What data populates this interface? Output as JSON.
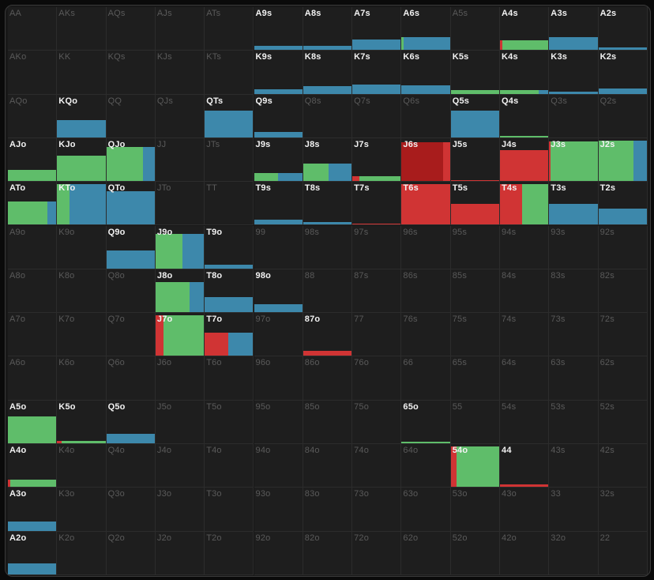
{
  "colors": {
    "red": "#d03434",
    "dark_red": "#a81c1c",
    "green": "#5fbd6a",
    "blue": "#3d88ab",
    "cell": "#1e1e1e"
  },
  "rows": [
    [
      "AA",
      "AKs",
      "AQs",
      "AJs",
      "ATs",
      "A9s",
      "A8s",
      "A7s",
      "A6s",
      "A5s",
      "A4s",
      "A3s",
      "A2s"
    ],
    [
      "AKo",
      "KK",
      "KQs",
      "KJs",
      "KTs",
      "K9s",
      "K8s",
      "K7s",
      "K6s",
      "K5s",
      "K4s",
      "K3s",
      "K2s"
    ],
    [
      "AQo",
      "KQo",
      "QQ",
      "QJs",
      "QTs",
      "Q9s",
      "Q8s",
      "Q7s",
      "Q6s",
      "Q5s",
      "Q4s",
      "Q3s",
      "Q2s"
    ],
    [
      "AJo",
      "KJo",
      "QJo",
      "JJ",
      "JTs",
      "J9s",
      "J8s",
      "J7s",
      "J6s",
      "J5s",
      "J4s",
      "J3s",
      "J2s"
    ],
    [
      "ATo",
      "KTo",
      "QTo",
      "JTo",
      "TT",
      "T9s",
      "T8s",
      "T7s",
      "T6s",
      "T5s",
      "T4s",
      "T3s",
      "T2s"
    ],
    [
      "A9o",
      "K9o",
      "Q9o",
      "J9o",
      "T9o",
      "99",
      "98s",
      "97s",
      "96s",
      "95s",
      "94s",
      "93s",
      "92s"
    ],
    [
      "A8o",
      "K8o",
      "Q8o",
      "J8o",
      "T8o",
      "98o",
      "88",
      "87s",
      "86s",
      "85s",
      "84s",
      "83s",
      "82s"
    ],
    [
      "A7o",
      "K7o",
      "Q7o",
      "J7o",
      "T7o",
      "97o",
      "87o",
      "77",
      "76s",
      "75s",
      "74s",
      "73s",
      "72s"
    ],
    [
      "A6o",
      "K6o",
      "Q6o",
      "J6o",
      "T6o",
      "96o",
      "86o",
      "76o",
      "66",
      "65s",
      "64s",
      "63s",
      "62s"
    ],
    [
      "A5o",
      "K5o",
      "Q5o",
      "J5o",
      "T5o",
      "95o",
      "85o",
      "75o",
      "65o",
      "55",
      "54s",
      "53s",
      "52s"
    ],
    [
      "A4o",
      "K4o",
      "Q4o",
      "J4o",
      "T4o",
      "94o",
      "84o",
      "74o",
      "64o",
      "54o",
      "44",
      "43s",
      "42s"
    ],
    [
      "A3o",
      "K3o",
      "Q3o",
      "J3o",
      "T3o",
      "93o",
      "83o",
      "73o",
      "63o",
      "53o",
      "43o",
      "33",
      "32s"
    ],
    [
      "A2o",
      "K2o",
      "Q2o",
      "J2o",
      "T2o",
      "92o",
      "82o",
      "72o",
      "62o",
      "52o",
      "42o",
      "32o",
      "22"
    ]
  ],
  "actions": {
    "A9s": [
      [
        "blue",
        1,
        0.1
      ]
    ],
    "A8s": [
      [
        "blue",
        1,
        0.1
      ]
    ],
    "A7s": [
      [
        "blue",
        1,
        0.25
      ]
    ],
    "A6s": [
      [
        "green",
        0.04,
        0.3
      ],
      [
        "blue",
        0.96,
        0.3
      ]
    ],
    "A4s": [
      [
        "red",
        0.05,
        0.22
      ],
      [
        "green",
        0.95,
        0.22
      ]
    ],
    "A3s": [
      [
        "blue",
        1,
        0.3
      ]
    ],
    "A2s": [
      [
        "blue",
        1,
        0.06
      ]
    ],
    "K9s": [
      [
        "blue",
        1,
        0.1
      ]
    ],
    "K8s": [
      [
        "blue",
        1,
        0.18
      ]
    ],
    "K7s": [
      [
        "blue",
        1,
        0.22
      ]
    ],
    "K6s": [
      [
        "blue",
        1,
        0.2
      ]
    ],
    "K5s": [
      [
        "green",
        1,
        0.08
      ]
    ],
    "K4s": [
      [
        "green",
        0.8,
        0.08
      ],
      [
        "blue",
        0.2,
        0.08
      ]
    ],
    "K3s": [
      [
        "blue",
        1,
        0.05
      ]
    ],
    "K2s": [
      [
        "blue",
        1,
        0.12
      ]
    ],
    "KQo": [
      [
        "blue",
        1,
        0.4
      ]
    ],
    "QTs": [
      [
        "blue",
        1,
        0.62
      ]
    ],
    "Q9s": [
      [
        "blue",
        1,
        0.12
      ]
    ],
    "Q5s": [
      [
        "blue",
        1,
        0.62
      ]
    ],
    "Q4s": [
      [
        "green",
        1,
        0.04
      ]
    ],
    "AJo": [
      [
        "green",
        1,
        0.27
      ]
    ],
    "KJo": [
      [
        "green",
        1,
        0.6
      ]
    ],
    "QJo": [
      [
        "green",
        0.75,
        0.8
      ],
      [
        "blue",
        0.25,
        0.8
      ]
    ],
    "J9s": [
      [
        "green",
        0.5,
        0.18
      ],
      [
        "blue",
        0.5,
        0.18
      ]
    ],
    "J8s": [
      [
        "green",
        0.52,
        0.4
      ],
      [
        "blue",
        0.48,
        0.4
      ]
    ],
    "J7s": [
      [
        "red",
        0.15,
        0.12
      ],
      [
        "green",
        0.85,
        0.12
      ]
    ],
    "J6s": [
      [
        "dred",
        0.86,
        0.9
      ],
      [
        "red",
        0.14,
        0.9
      ]
    ],
    "J5s": [
      [
        "red",
        1,
        0.03
      ]
    ],
    "J4s": [
      [
        "red",
        1,
        0.72
      ]
    ],
    "J3s": [
      [
        "red",
        0.03,
        0.92
      ],
      [
        "green",
        0.97,
        0.92
      ]
    ],
    "J2s": [
      [
        "green",
        0.72,
        0.95
      ],
      [
        "blue",
        0.28,
        0.95
      ]
    ],
    "ATo": [
      [
        "green",
        0.82,
        0.55
      ],
      [
        "blue",
        0.18,
        0.55
      ]
    ],
    "KTo": [
      [
        "green",
        0.25,
        0.95
      ],
      [
        "blue",
        0.75,
        0.95
      ]
    ],
    "QTo": [
      [
        "blue",
        1,
        0.78
      ]
    ],
    "T9s": [
      [
        "blue",
        1,
        0.12
      ]
    ],
    "T8s": [
      [
        "blue",
        1,
        0.06
      ]
    ],
    "T7s": [
      [
        "red",
        1,
        0.03
      ]
    ],
    "T6s": [
      [
        "red",
        1,
        0.95
      ]
    ],
    "T5s": [
      [
        "red",
        1,
        0.48
      ]
    ],
    "T4s": [
      [
        "red",
        0.45,
        0.95
      ],
      [
        "green",
        0.55,
        0.95
      ]
    ],
    "T3s": [
      [
        "blue",
        1,
        0.48
      ]
    ],
    "T2s": [
      [
        "blue",
        1,
        0.38
      ]
    ],
    "Q9o": [
      [
        "blue",
        1,
        0.42
      ]
    ],
    "J9o": [
      [
        "green",
        0.55,
        0.8
      ],
      [
        "blue",
        0.45,
        0.8
      ]
    ],
    "T9o": [
      [
        "blue",
        1,
        0.08
      ]
    ],
    "J8o": [
      [
        "green",
        0.7,
        0.7
      ],
      [
        "blue",
        0.3,
        0.7
      ]
    ],
    "T8o": [
      [
        "blue",
        1,
        0.35
      ]
    ],
    "98o": [
      [
        "blue",
        1,
        0.18
      ]
    ],
    "J7o": [
      [
        "red",
        0.16,
        0.95
      ],
      [
        "green",
        0.84,
        0.95
      ]
    ],
    "T7o": [
      [
        "red",
        0.48,
        0.55
      ],
      [
        "blue",
        0.52,
        0.55
      ]
    ],
    "87o": [
      [
        "red",
        1,
        0.12
      ]
    ],
    "A5o": [
      [
        "green",
        1,
        0.62
      ]
    ],
    "K5o": [
      [
        "red",
        0.1,
        0.06
      ],
      [
        "green",
        0.9,
        0.06
      ]
    ],
    "Q5o": [
      [
        "blue",
        1,
        0.22
      ]
    ],
    "65o": [
      [
        "green",
        1,
        0.04
      ]
    ],
    "A4o": [
      [
        "red",
        0.05,
        0.18
      ],
      [
        "green",
        0.95,
        0.18
      ]
    ],
    "54o": [
      [
        "red",
        0.12,
        0.95
      ],
      [
        "green",
        0.88,
        0.95
      ]
    ],
    "44": [
      [
        "red",
        1,
        0.07
      ]
    ],
    "A3o": [
      [
        "blue",
        1,
        0.22
      ]
    ],
    "A2o": [
      [
        "blue",
        1,
        0.25
      ]
    ]
  }
}
